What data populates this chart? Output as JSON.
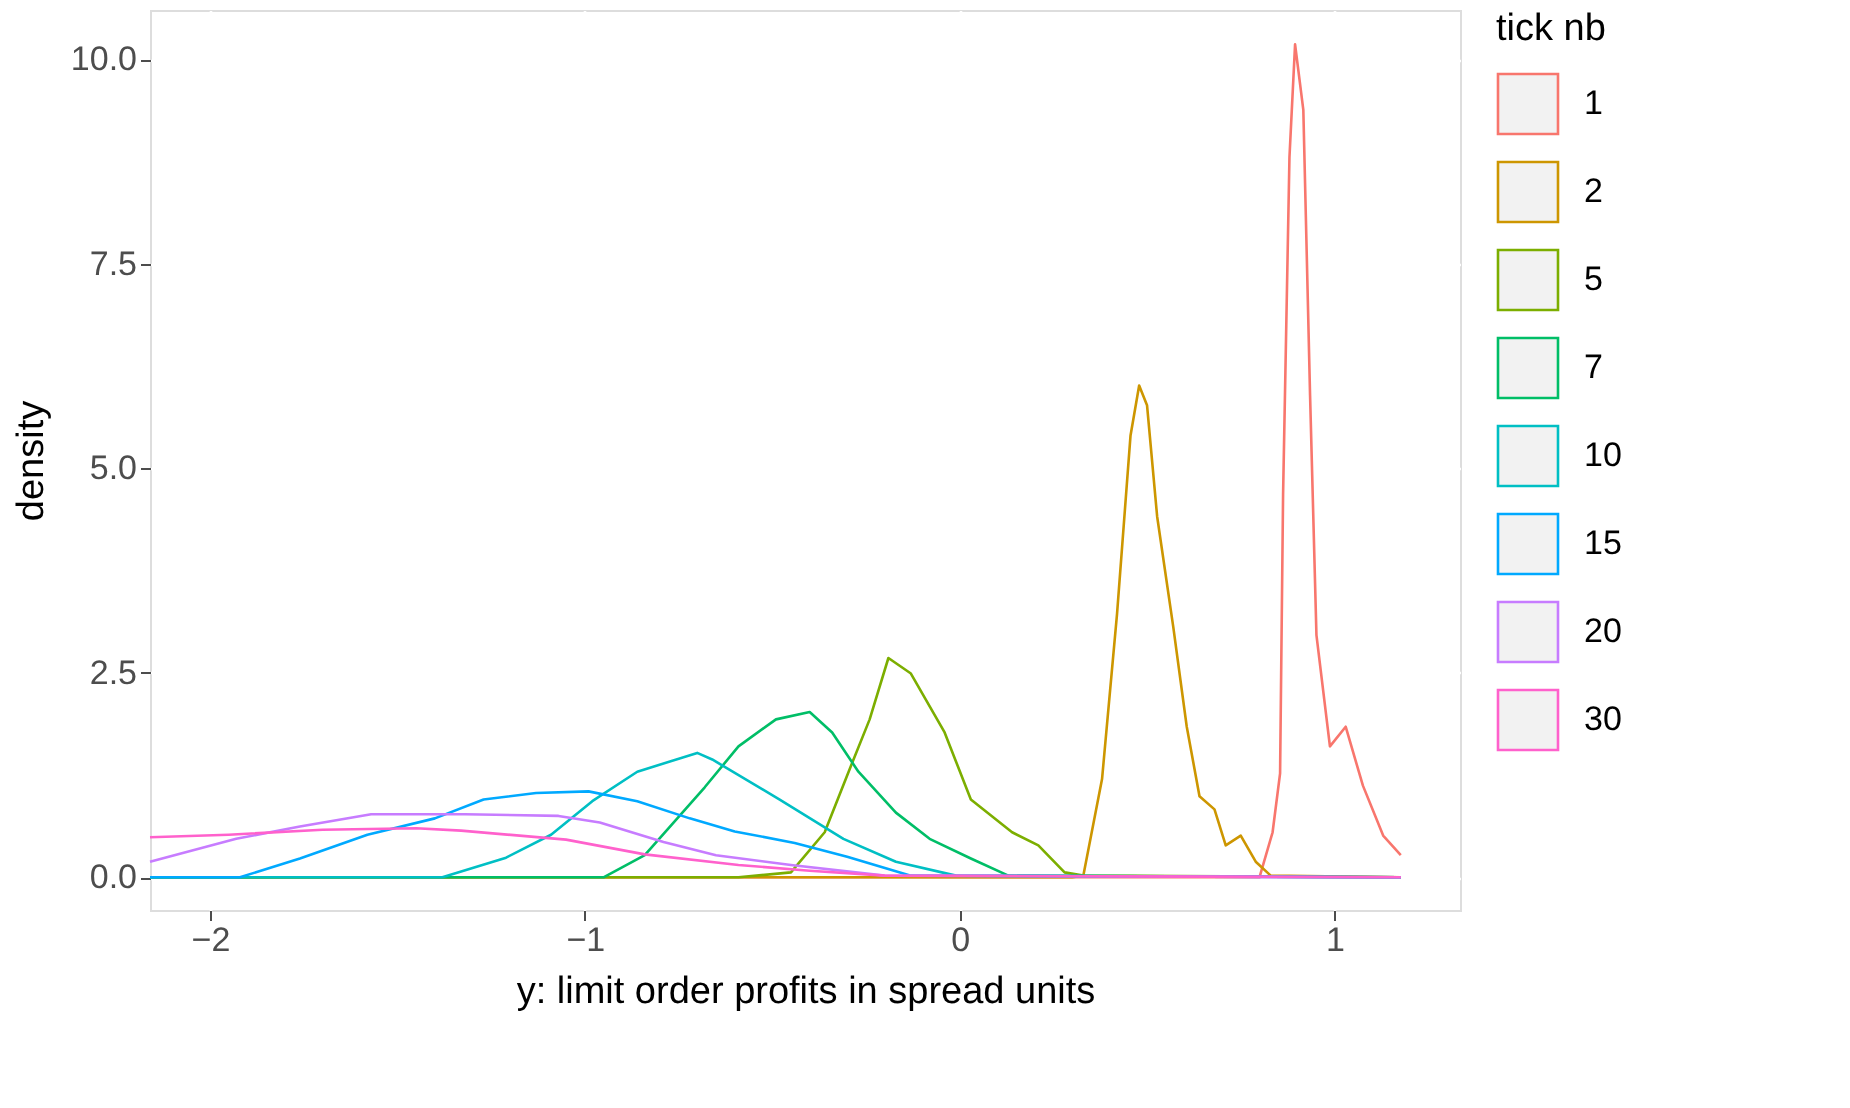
{
  "chart_data": {
    "type": "line",
    "xlabel": "y: limit order profits in spread units",
    "ylabel": "density",
    "legend_title": "tick nb",
    "legend": "right",
    "grid": true,
    "line_style": "solid",
    "xlim": [
      -2.16,
      1.335
    ],
    "ylim": [
      -0.4,
      10.6
    ],
    "xticks": [
      -2,
      -1,
      0,
      1
    ],
    "yticks": [
      {
        "value": 0,
        "label": "0.0"
      },
      {
        "value": 2.5,
        "label": "2.5"
      },
      {
        "value": 5,
        "label": "5.0"
      },
      {
        "value": 7.5,
        "label": "7.5"
      },
      {
        "value": 10,
        "label": "10.0"
      }
    ],
    "series": [
      {
        "name": "1",
        "color": "#f8766d",
        "x": [
          -2.16,
          0.8,
          0.835,
          0.855,
          0.863,
          0.88,
          0.895,
          0.917,
          0.935,
          0.952,
          0.988,
          1.03,
          1.076,
          1.13,
          1.177
        ],
        "values": [
          0,
          0,
          0.55,
          1.27,
          4.68,
          8.8,
          10.18,
          9.38,
          5.89,
          2.96,
          1.6,
          1.84,
          1.12,
          0.51,
          0.27
        ]
      },
      {
        "name": "2",
        "color": "#cd9600",
        "x": [
          -2.16,
          0.3,
          0.33,
          0.38,
          0.42,
          0.456,
          0.479,
          0.5,
          0.527,
          0.57,
          0.606,
          0.64,
          0.68,
          0.71,
          0.75,
          0.79,
          0.83,
          1.177
        ],
        "values": [
          0,
          0,
          0.02,
          1.2,
          3.22,
          5.4,
          6.01,
          5.77,
          4.41,
          3.06,
          1.84,
          0.99,
          0.83,
          0.39,
          0.51,
          0.19,
          0.02,
          0
        ]
      },
      {
        "name": "5",
        "color": "#7cae00",
        "x": [
          -2.16,
          -0.59,
          -0.45,
          -0.36,
          -0.29,
          -0.24,
          -0.19,
          -0.13,
          -0.04,
          0.03,
          0.14,
          0.21,
          0.28,
          0.33,
          1.177
        ],
        "values": [
          0,
          0,
          0.06,
          0.55,
          1.36,
          1.93,
          2.68,
          2.49,
          1.77,
          0.95,
          0.55,
          0.39,
          0.06,
          0.02,
          0
        ]
      },
      {
        "name": "7",
        "color": "#00be67",
        "x": [
          -2.16,
          -0.95,
          -0.84,
          -0.68,
          -0.59,
          -0.49,
          -0.4,
          -0.34,
          -0.27,
          -0.17,
          -0.08,
          0.03,
          0.13,
          1.177
        ],
        "values": [
          0,
          0,
          0.27,
          1.1,
          1.6,
          1.93,
          2.02,
          1.77,
          1.29,
          0.79,
          0.47,
          0.23,
          0.02,
          0
        ]
      },
      {
        "name": "10",
        "color": "#00bfc4",
        "x": [
          -2.16,
          -1.38,
          -1.21,
          -1.09,
          -0.98,
          -0.86,
          -0.7,
          -0.66,
          -0.48,
          -0.31,
          -0.17,
          -0.01,
          1.177
        ],
        "values": [
          0,
          0,
          0.24,
          0.52,
          0.93,
          1.29,
          1.52,
          1.44,
          0.95,
          0.47,
          0.19,
          0.02,
          0
        ]
      },
      {
        "name": "15",
        "color": "#00a9ff",
        "x": [
          -2.16,
          -1.92,
          -1.76,
          -1.58,
          -1.4,
          -1.27,
          -1.13,
          -0.99,
          -0.86,
          -0.72,
          -0.6,
          -0.44,
          -0.3,
          -0.13,
          1.177
        ],
        "values": [
          0,
          0,
          0.23,
          0.52,
          0.72,
          0.95,
          1.03,
          1.05,
          0.93,
          0.72,
          0.56,
          0.42,
          0.25,
          0.02,
          0
        ]
      },
      {
        "name": "20",
        "color": "#c77cff",
        "x": [
          -2.16,
          -1.93,
          -1.76,
          -1.57,
          -1.32,
          -1.07,
          -0.96,
          -0.79,
          -0.65,
          -0.45,
          -0.2,
          1.177
        ],
        "values": [
          0.19,
          0.47,
          0.62,
          0.77,
          0.77,
          0.75,
          0.67,
          0.43,
          0.27,
          0.15,
          0.02,
          0
        ]
      },
      {
        "name": "30",
        "color": "#ff61cc",
        "x": [
          -2.16,
          -1.95,
          -1.7,
          -1.45,
          -1.33,
          -1.05,
          -0.84,
          -0.59,
          -0.4,
          -0.2,
          1.177
        ],
        "values": [
          0.49,
          0.52,
          0.58,
          0.6,
          0.57,
          0.46,
          0.28,
          0.15,
          0.08,
          0.02,
          0
        ]
      }
    ]
  }
}
